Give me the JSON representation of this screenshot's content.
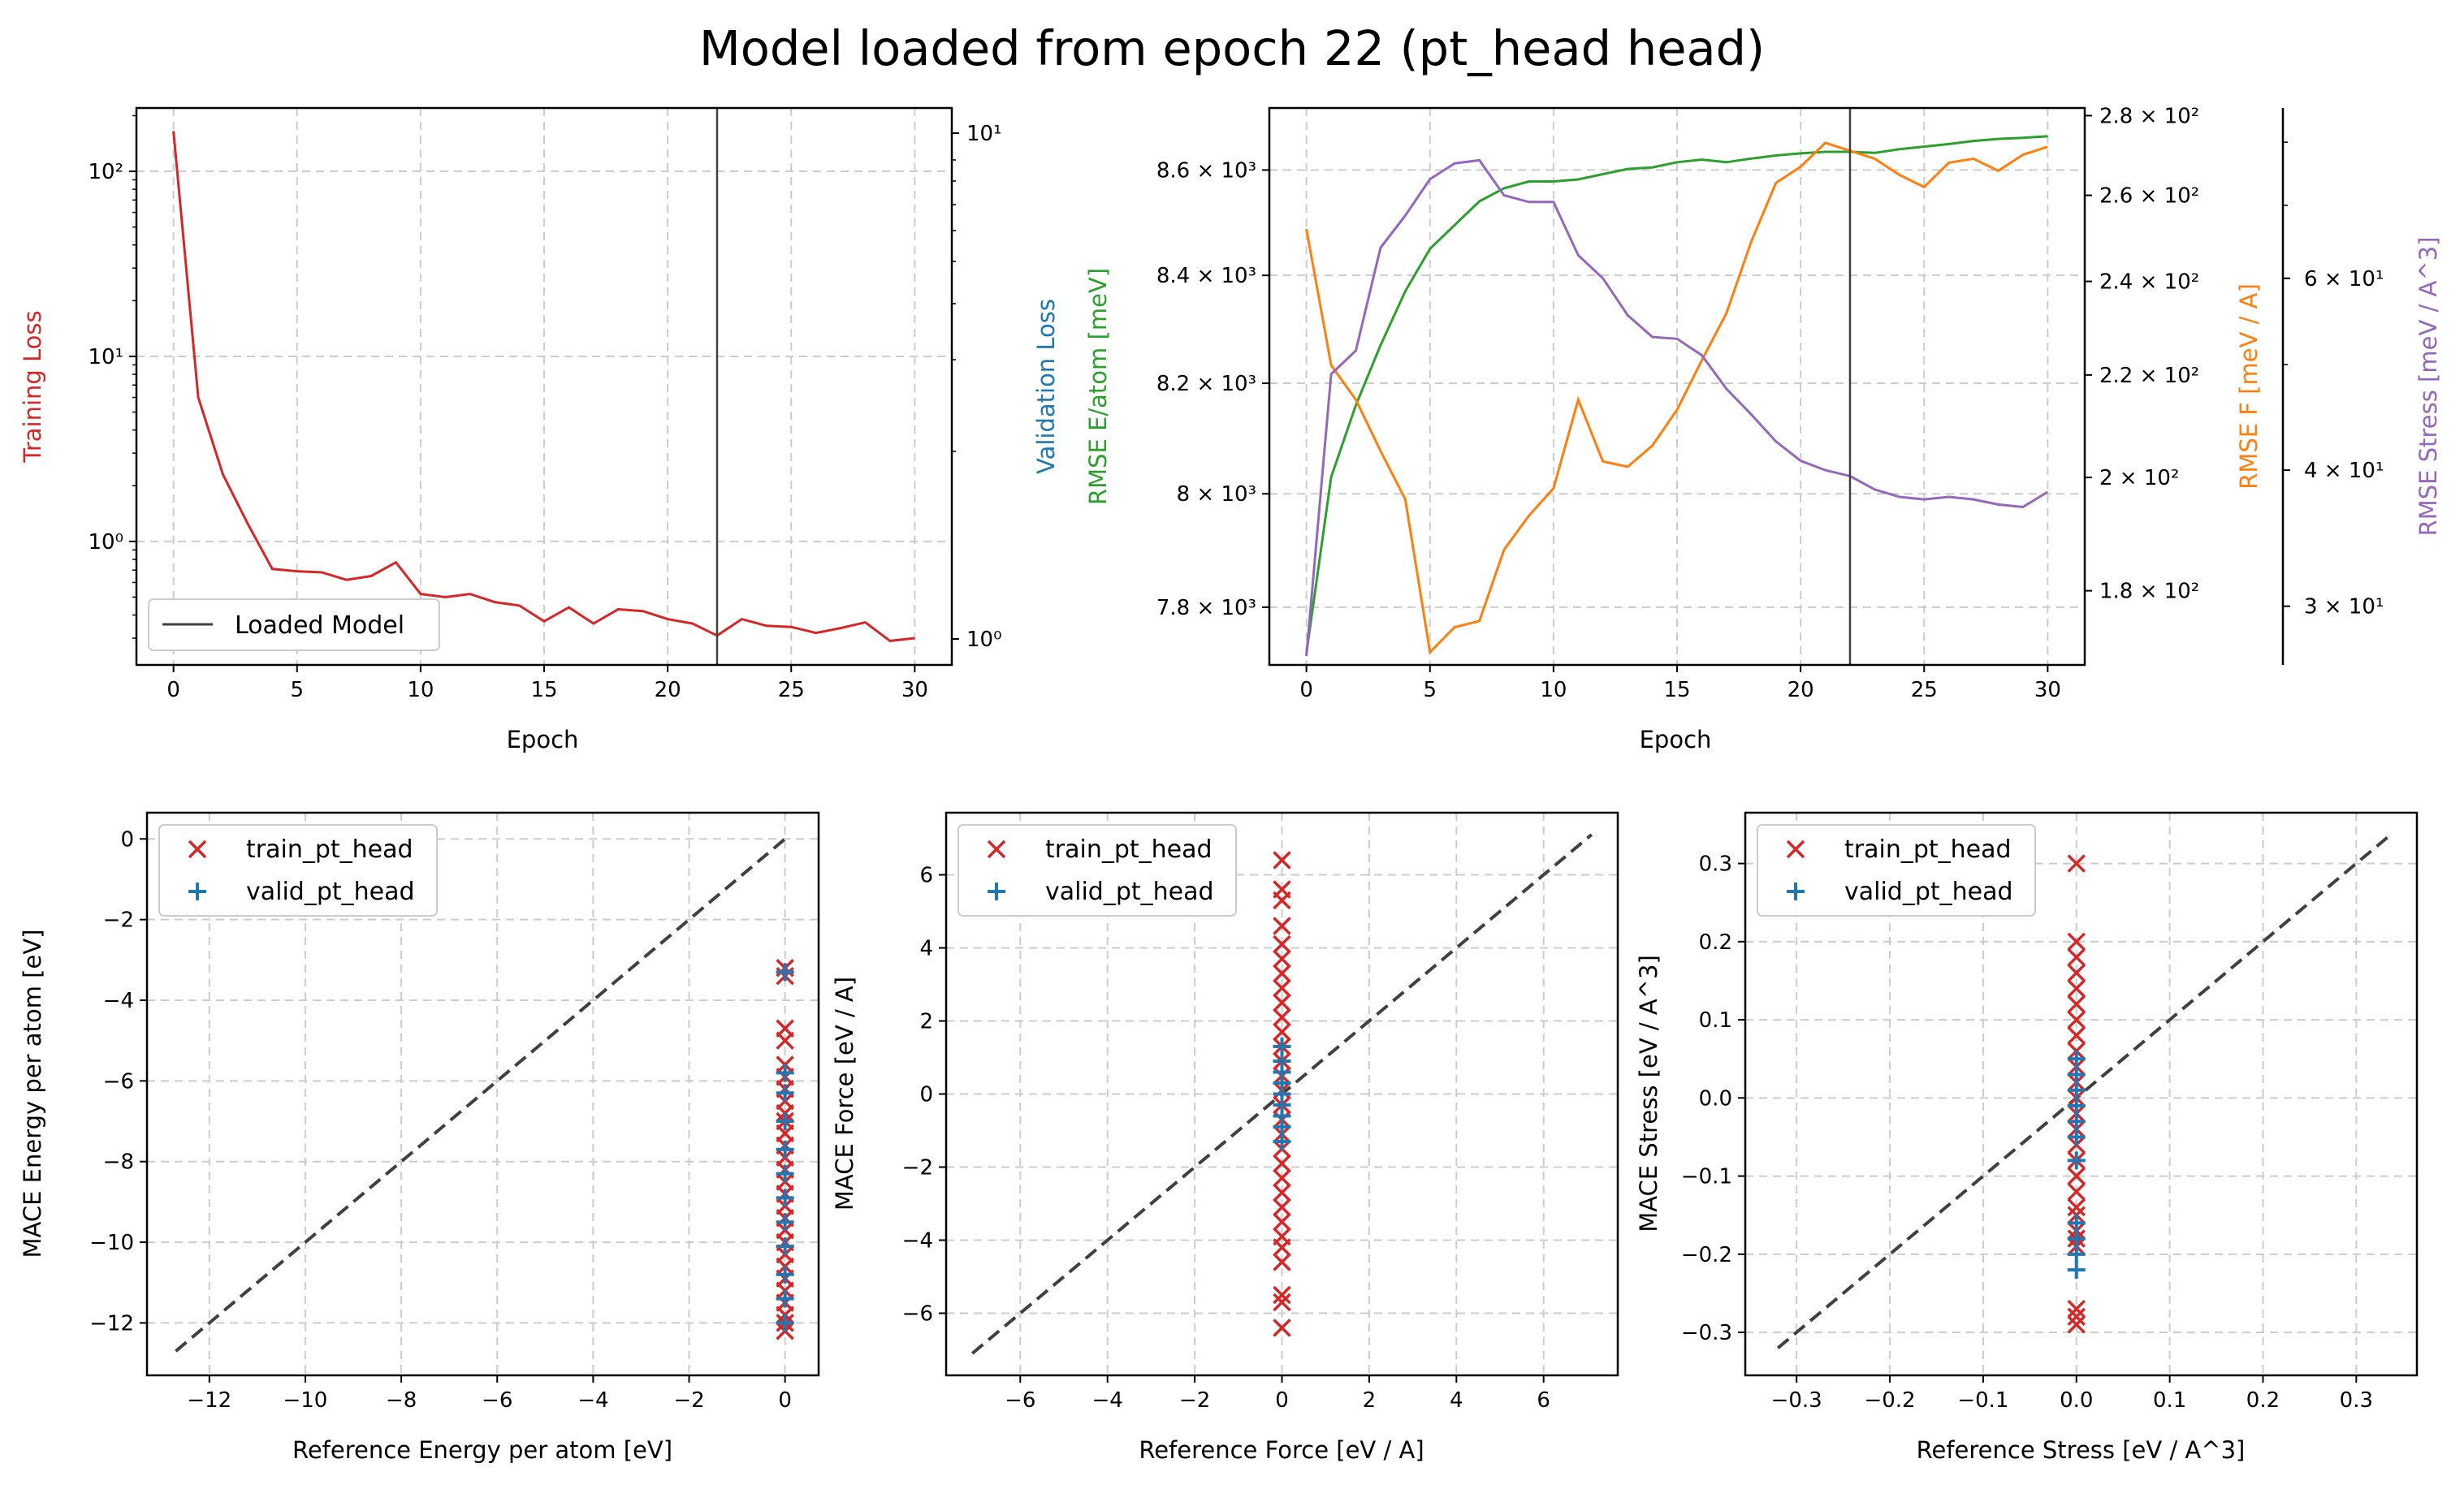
{
  "title": "Model loaded from epoch 22 (pt_head head)",
  "colors": {
    "red": "#d62728",
    "blue": "#1f77b4",
    "green": "#2ca02c",
    "orange": "#ff7f0e",
    "purple": "#9467bd",
    "dark": "#404040"
  },
  "chart_data": [
    {
      "type": "line",
      "title": "",
      "xlabel": "Epoch",
      "ylabel": "Training Loss",
      "ylabel_right": "Validation Loss",
      "yscale": "log",
      "xlim": [
        -1.5,
        31.5
      ],
      "ylim": [
        0.215,
        220
      ],
      "xticks": [
        "0",
        "5",
        "10",
        "15",
        "20",
        "25",
        "30"
      ],
      "yticks": [
        {
          "v": 1,
          "label": "10⁰"
        },
        {
          "v": 10,
          "label": "10¹"
        },
        {
          "v": 100,
          "label": "10²"
        }
      ],
      "yticks_right": [
        {
          "label": "10⁰"
        },
        {
          "label": "10¹"
        }
      ],
      "loaded_epoch": 22,
      "legend": {
        "location": "lower-left",
        "entries": [
          "Loaded Model"
        ]
      },
      "grid": true,
      "series": [
        {
          "name": "",
          "color": "red",
          "x": [
            0,
            1,
            2,
            3,
            4,
            5,
            6,
            7,
            8,
            9,
            10,
            11,
            12,
            13,
            14,
            15,
            16,
            17,
            18,
            19,
            20,
            21,
            22,
            23,
            24,
            25,
            26,
            27,
            28,
            29,
            30
          ],
          "values": [
            165,
            6.0,
            2.3,
            1.25,
            0.71,
            0.69,
            0.68,
            0.62,
            0.65,
            0.77,
            0.52,
            0.5,
            0.52,
            0.47,
            0.45,
            0.37,
            0.44,
            0.36,
            0.43,
            0.42,
            0.38,
            0.36,
            0.31,
            0.38,
            0.35,
            0.345,
            0.32,
            0.34,
            0.365,
            0.29,
            0.3
          ]
        }
      ]
    },
    {
      "type": "line",
      "title": "",
      "xlabel": "Epoch",
      "grid": true,
      "xlim": [
        -1.5,
        31.5
      ],
      "xticks": [
        "0",
        "5",
        "10",
        "15",
        "20",
        "25",
        "30"
      ],
      "loaded_epoch": 22,
      "axes": [
        {
          "ylabel": "RMSE E/atom [meV]",
          "color": "green",
          "yscale": "log",
          "ylim": [
            7700,
            8720
          ],
          "yticks": [
            {
              "v": 7800,
              "label": "7.8 × 10³"
            },
            {
              "v": 8000,
              "label": "8 × 10³"
            },
            {
              "v": 8200,
              "label": "8.2 × 10³"
            },
            {
              "v": 8400,
              "label": "8.4 × 10³"
            },
            {
              "v": 8600,
              "label": "8.6 × 10³"
            }
          ]
        },
        {
          "ylabel": "RMSE F [meV / A]",
          "color": "orange",
          "yscale": "log",
          "ylim": [
            168,
            282
          ],
          "yticks": [
            {
              "v": 180,
              "label": "1.8 × 10²"
            },
            {
              "v": 200,
              "label": "2 × 10²"
            },
            {
              "v": 220,
              "label": "2.2 × 10²"
            },
            {
              "v": 240,
              "label": "2.4 × 10²"
            },
            {
              "v": 260,
              "label": "2.6 × 10²"
            },
            {
              "v": 280,
              "label": "2.8 × 10²"
            }
          ]
        },
        {
          "ylabel": "RMSE Stress [meV / A^3]",
          "color": "purple",
          "yscale": "log",
          "ylim": [
            26.5,
            86
          ],
          "yticks": [
            {
              "v": 30,
              "label": "3 × 10¹"
            },
            {
              "v": 40,
              "label": "4 × 10¹"
            },
            {
              "v": 60,
              "label": "6 × 10¹"
            }
          ]
        }
      ],
      "series": [
        {
          "name": "",
          "axis": 0,
          "color": "green",
          "x": [
            0,
            1,
            2,
            3,
            4,
            5,
            6,
            7,
            8,
            9,
            10,
            11,
            12,
            13,
            14,
            15,
            16,
            17,
            18,
            19,
            20,
            21,
            22,
            23,
            24,
            25,
            26,
            27,
            28,
            29,
            30
          ],
          "values": [
            7720,
            8030,
            8160,
            8270,
            8370,
            8450,
            8495,
            8540,
            8565,
            8578,
            8578,
            8582,
            8592,
            8602,
            8605,
            8615,
            8620,
            8615,
            8622,
            8628,
            8632,
            8635,
            8635,
            8633,
            8640,
            8645,
            8650,
            8656,
            8660,
            8662,
            8665
          ]
        },
        {
          "name": "",
          "axis": 1,
          "color": "orange",
          "x": [
            0,
            1,
            2,
            3,
            4,
            5,
            6,
            7,
            8,
            9,
            10,
            11,
            12,
            13,
            14,
            15,
            16,
            17,
            18,
            19,
            20,
            21,
            22,
            23,
            24,
            25,
            26,
            27,
            28,
            29,
            30
          ],
          "values": [
            252,
            222,
            215,
            205,
            196,
            170,
            174,
            175,
            187,
            193,
            198,
            215,
            203,
            202,
            206,
            213,
            223,
            233,
            249,
            263,
            267,
            273,
            271,
            269,
            265,
            262,
            268,
            269,
            266,
            270,
            272
          ]
        },
        {
          "name": "",
          "axis": 2,
          "color": "purple",
          "x": [
            0,
            1,
            2,
            3,
            4,
            5,
            6,
            7,
            8,
            9,
            10,
            11,
            12,
            13,
            14,
            15,
            16,
            17,
            18,
            19,
            20,
            21,
            22,
            23,
            24,
            25,
            26,
            27,
            28,
            29,
            30
          ],
          "values": [
            27.0,
            49.0,
            51.5,
            64.0,
            68.5,
            74.0,
            76.5,
            77.0,
            71.5,
            70.5,
            70.5,
            63.0,
            60.0,
            55.5,
            53.0,
            52.8,
            51.0,
            47.5,
            45.0,
            42.5,
            40.8,
            40.0,
            39.5,
            38.4,
            37.8,
            37.6,
            37.8,
            37.6,
            37.2,
            37.0,
            38.2
          ]
        }
      ]
    },
    {
      "type": "scatter",
      "title": "",
      "xlabel": "Reference Energy per atom [eV]",
      "ylabel": "MACE Energy per atom [eV]",
      "xlim": [
        -13.3,
        0.7
      ],
      "ylim": [
        -13.3,
        0.65
      ],
      "xticks": [
        {
          "v": -12,
          "label": "−12"
        },
        {
          "v": -10,
          "label": "−10"
        },
        {
          "v": -8,
          "label": "−8"
        },
        {
          "v": -6,
          "label": "−6"
        },
        {
          "v": -4,
          "label": "−4"
        },
        {
          "v": -2,
          "label": "−2"
        },
        {
          "v": 0,
          "label": "0"
        }
      ],
      "yticks": [
        {
          "v": -12,
          "label": "−12"
        },
        {
          "v": -10,
          "label": "−10"
        },
        {
          "v": -8,
          "label": "−8"
        },
        {
          "v": -6,
          "label": "−6"
        },
        {
          "v": -4,
          "label": "−4"
        },
        {
          "v": -2,
          "label": "−2"
        },
        {
          "v": 0,
          "label": "0"
        }
      ],
      "grid": true,
      "diagonal": [
        -12.7,
        0
      ],
      "legend": {
        "location": "top-left",
        "entries": [
          "train_pt_head",
          "valid_pt_head"
        ]
      },
      "series": [
        {
          "name": "train_pt_head",
          "marker": "x",
          "color": "red",
          "x_constant": 0,
          "y": [
            -3.2,
            -3.4,
            -4.7,
            -5.0,
            -5.6,
            -5.9,
            -6.2,
            -6.5,
            -6.8,
            -7.0,
            -7.3,
            -7.6,
            -7.9,
            -8.2,
            -8.5,
            -8.8,
            -9.1,
            -9.4,
            -9.7,
            -10.0,
            -10.3,
            -10.6,
            -10.9,
            -11.2,
            -11.5,
            -11.8,
            -12.0,
            -12.2
          ]
        },
        {
          "name": "valid_pt_head",
          "marker": "+",
          "color": "blue",
          "x_constant": 0,
          "y": [
            -3.3,
            -5.8,
            -6.3,
            -7.0,
            -7.7,
            -8.3,
            -8.9,
            -9.5,
            -10.1,
            -10.8,
            -11.4,
            -12.0
          ]
        }
      ]
    },
    {
      "type": "scatter",
      "title": "",
      "xlabel": "Reference Force [eV / A]",
      "ylabel": "MACE Force [eV / A]",
      "xlim": [
        -7.7,
        7.7
      ],
      "ylim": [
        -7.7,
        7.7
      ],
      "xticks": [
        {
          "v": -6,
          "label": "−6"
        },
        {
          "v": -4,
          "label": "−4"
        },
        {
          "v": -2,
          "label": "−2"
        },
        {
          "v": 0,
          "label": "0"
        },
        {
          "v": 2,
          "label": "2"
        },
        {
          "v": 4,
          "label": "4"
        },
        {
          "v": 6,
          "label": "6"
        }
      ],
      "yticks": [
        {
          "v": -6,
          "label": "−6"
        },
        {
          "v": -4,
          "label": "−4"
        },
        {
          "v": -2,
          "label": "−2"
        },
        {
          "v": 0,
          "label": "0"
        },
        {
          "v": 2,
          "label": "2"
        },
        {
          "v": 4,
          "label": "4"
        },
        {
          "v": 6,
          "label": "6"
        }
      ],
      "grid": true,
      "diagonal": [
        -7.1,
        7.1
      ],
      "legend": {
        "location": "top-left",
        "entries": [
          "train_pt_head",
          "valid_pt_head"
        ]
      },
      "series": [
        {
          "name": "train_pt_head",
          "marker": "x",
          "color": "red",
          "x_constant": 0,
          "y": [
            6.4,
            5.6,
            5.3,
            4.6,
            4.1,
            3.7,
            3.3,
            2.9,
            2.5,
            2.1,
            1.7,
            1.3,
            0.9,
            0.5,
            0.1,
            -0.3,
            -0.7,
            -1.1,
            -1.5,
            -1.9,
            -2.3,
            -2.7,
            -3.1,
            -3.5,
            -3.9,
            -4.2,
            -4.6,
            -5.5,
            -5.7,
            -6.4
          ]
        },
        {
          "name": "valid_pt_head",
          "marker": "+",
          "color": "blue",
          "x_constant": 0,
          "y": [
            1.3,
            0.9,
            0.6,
            0.3,
            0.0,
            -0.3,
            -0.6,
            -0.9,
            -1.3
          ]
        }
      ]
    },
    {
      "type": "scatter",
      "title": "",
      "xlabel": "Reference Stress [eV / A^3]",
      "ylabel": "MACE Stress [eV / A^3]",
      "xlim": [
        -0.355,
        0.365
      ],
      "ylim": [
        -0.355,
        0.365
      ],
      "xticks": [
        {
          "v": -0.3,
          "label": "−0.3"
        },
        {
          "v": -0.2,
          "label": "−0.2"
        },
        {
          "v": -0.1,
          "label": "−0.1"
        },
        {
          "v": 0,
          "label": "0.0"
        },
        {
          "v": 0.1,
          "label": "0.1"
        },
        {
          "v": 0.2,
          "label": "0.2"
        },
        {
          "v": 0.3,
          "label": "0.3"
        }
      ],
      "yticks": [
        {
          "v": -0.3,
          "label": "−0.3"
        },
        {
          "v": -0.2,
          "label": "−0.2"
        },
        {
          "v": -0.1,
          "label": "−0.1"
        },
        {
          "v": 0,
          "label": "0.0"
        },
        {
          "v": 0.1,
          "label": "0.1"
        },
        {
          "v": 0.2,
          "label": "0.2"
        },
        {
          "v": 0.3,
          "label": "0.3"
        }
      ],
      "grid": true,
      "diagonal": [
        -0.32,
        0.335
      ],
      "legend": {
        "location": "top-left",
        "entries": [
          "train_pt_head",
          "valid_pt_head"
        ]
      },
      "series": [
        {
          "name": "train_pt_head",
          "marker": "x",
          "color": "red",
          "x_constant": 0,
          "y": [
            0.3,
            0.2,
            0.18,
            0.16,
            0.14,
            0.12,
            0.1,
            0.08,
            0.06,
            0.04,
            0.02,
            0.0,
            -0.02,
            -0.04,
            -0.06,
            -0.08,
            -0.1,
            -0.12,
            -0.14,
            -0.15,
            -0.17,
            -0.18,
            -0.19,
            -0.27,
            -0.28,
            -0.29
          ]
        },
        {
          "name": "valid_pt_head",
          "marker": "+",
          "color": "blue",
          "x_constant": 0,
          "y": [
            0.05,
            0.03,
            0.01,
            -0.01,
            -0.03,
            -0.05,
            -0.08,
            -0.16,
            -0.18,
            -0.2,
            -0.22
          ]
        }
      ]
    }
  ]
}
